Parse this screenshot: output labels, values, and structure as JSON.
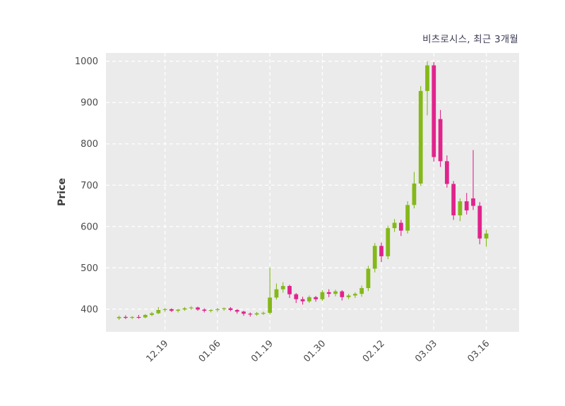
{
  "chart_data": {
    "type": "candlestick",
    "title": "비츠로시스, 최근 3개월",
    "ylabel": "Price",
    "xlabel": "",
    "ylim": [
      345,
      1020
    ],
    "yticks": [
      400,
      500,
      600,
      700,
      800,
      900,
      1000
    ],
    "xtick_labels": [
      "12.19",
      "01.06",
      "01.19",
      "01.30",
      "02.12",
      "03.03",
      "03.16"
    ],
    "xtick_indices": [
      7,
      15,
      23,
      31,
      40,
      48,
      56
    ],
    "grid": true,
    "legend": "none",
    "colors": {
      "up": "#84b819",
      "down": "#e0248c",
      "plot_bg": "#ebebeb",
      "grid": "#ffffff",
      "tick_text": "#4a4a4a",
      "title_text": "#3c3c55"
    },
    "candles": [
      [
        378,
        384,
        374,
        381
      ],
      [
        381,
        385,
        376,
        379
      ],
      [
        379,
        383,
        376,
        381
      ],
      [
        381,
        386,
        377,
        380
      ],
      [
        380,
        388,
        378,
        386
      ],
      [
        386,
        393,
        383,
        390
      ],
      [
        390,
        405,
        388,
        398
      ],
      [
        398,
        403,
        394,
        400
      ],
      [
        400,
        402,
        393,
        396
      ],
      [
        396,
        401,
        392,
        399
      ],
      [
        399,
        405,
        396,
        402
      ],
      [
        402,
        407,
        398,
        404
      ],
      [
        404,
        406,
        396,
        399
      ],
      [
        399,
        402,
        392,
        396
      ],
      [
        396,
        400,
        392,
        398
      ],
      [
        398,
        403,
        394,
        400
      ],
      [
        400,
        404,
        396,
        402
      ],
      [
        402,
        405,
        395,
        398
      ],
      [
        398,
        400,
        389,
        394
      ],
      [
        394,
        396,
        384,
        389
      ],
      [
        389,
        392,
        382,
        387
      ],
      [
        387,
        393,
        384,
        390
      ],
      [
        390,
        394,
        386,
        391
      ],
      [
        391,
        500,
        387,
        428
      ],
      [
        428,
        462,
        423,
        448
      ],
      [
        448,
        465,
        440,
        456
      ],
      [
        456,
        459,
        427,
        436
      ],
      [
        436,
        439,
        415,
        424
      ],
      [
        424,
        430,
        411,
        419
      ],
      [
        419,
        433,
        415,
        429
      ],
      [
        429,
        432,
        418,
        424
      ],
      [
        424,
        446,
        420,
        441
      ],
      [
        441,
        448,
        429,
        437
      ],
      [
        437,
        447,
        431,
        443
      ],
      [
        443,
        446,
        421,
        429
      ],
      [
        429,
        437,
        424,
        433
      ],
      [
        433,
        441,
        427,
        437
      ],
      [
        437,
        457,
        430,
        451
      ],
      [
        451,
        505,
        444,
        498
      ],
      [
        498,
        560,
        489,
        553
      ],
      [
        553,
        561,
        514,
        528
      ],
      [
        528,
        602,
        521,
        596
      ],
      [
        596,
        618,
        587,
        609
      ],
      [
        609,
        616,
        577,
        590
      ],
      [
        590,
        661,
        583,
        652
      ],
      [
        652,
        732,
        644,
        704
      ],
      [
        704,
        940,
        698,
        928
      ],
      [
        928,
        1000,
        869,
        990
      ],
      [
        990,
        998,
        757,
        768
      ],
      [
        860,
        882,
        744,
        758
      ],
      [
        758,
        772,
        694,
        703
      ],
      [
        703,
        710,
        616,
        627
      ],
      [
        627,
        668,
        613,
        661
      ],
      [
        661,
        681,
        629,
        639
      ],
      [
        668,
        785,
        640,
        650
      ],
      [
        650,
        659,
        557,
        571
      ],
      [
        571,
        592,
        551,
        583
      ]
    ]
  }
}
